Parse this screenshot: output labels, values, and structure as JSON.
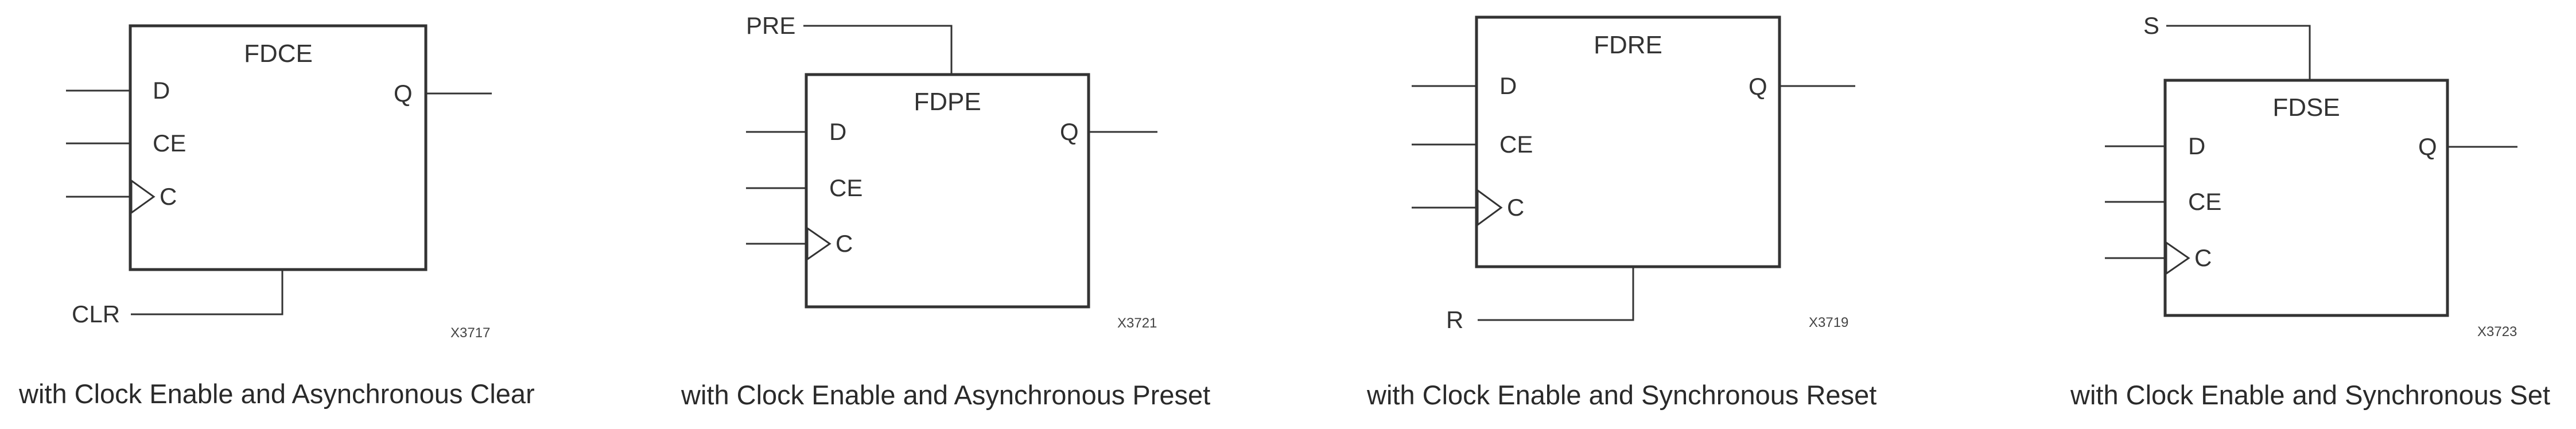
{
  "diagrams": [
    {
      "name": "FDCE",
      "pins": {
        "d": "D",
        "ce": "CE",
        "clk": "C",
        "q": "Q"
      },
      "extra_pin": {
        "label": "CLR",
        "edge": "bottom"
      },
      "code": "X3717",
      "caption": "with Clock Enable and Asynchronous Clear"
    },
    {
      "name": "FDPE",
      "pins": {
        "d": "D",
        "ce": "CE",
        "clk": "C",
        "q": "Q"
      },
      "extra_pin": {
        "label": "PRE",
        "edge": "top"
      },
      "code": "X3721",
      "caption": "with Clock Enable and Asynchronous Preset"
    },
    {
      "name": "FDRE",
      "pins": {
        "d": "D",
        "ce": "CE",
        "clk": "C",
        "q": "Q"
      },
      "extra_pin": {
        "label": "R",
        "edge": "bottom"
      },
      "code": "X3719",
      "caption": "with Clock Enable and Synchronous Reset"
    },
    {
      "name": "FDSE",
      "pins": {
        "d": "D",
        "ce": "CE",
        "clk": "C",
        "q": "Q"
      },
      "extra_pin": {
        "label": "S",
        "edge": "top"
      },
      "code": "X3723",
      "caption": "with Clock Enable and Synchronous Set"
    }
  ]
}
